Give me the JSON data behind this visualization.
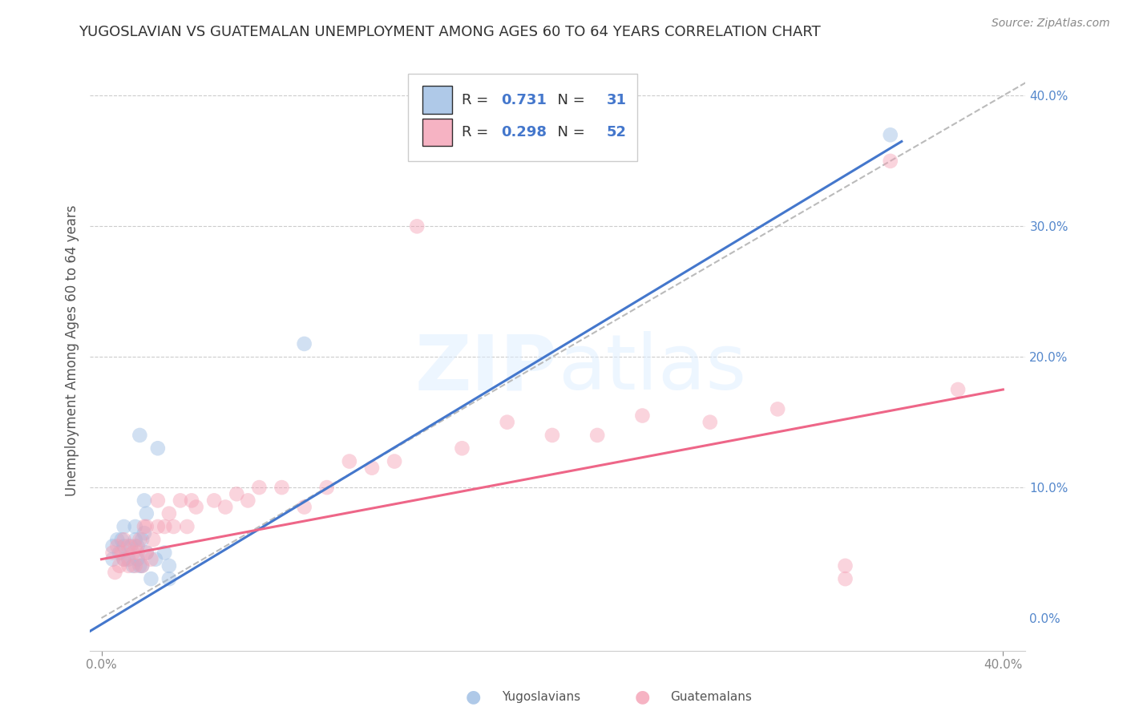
{
  "title": "YUGOSLAVIAN VS GUATEMALAN UNEMPLOYMENT AMONG AGES 60 TO 64 YEARS CORRELATION CHART",
  "source": "Source: ZipAtlas.com",
  "ylabel": "Unemployment Among Ages 60 to 64 years",
  "xlim": [
    -0.005,
    0.41
  ],
  "ylim": [
    -0.025,
    0.435
  ],
  "yticks_right": [
    0.0,
    0.1,
    0.2,
    0.3,
    0.4
  ],
  "ytick_labels_right": [
    "0.0%",
    "10.0%",
    "20.0%",
    "30.0%",
    "40.0%"
  ],
  "xticks": [
    0.0,
    0.4
  ],
  "xtick_labels": [
    "0.0%",
    "40.0%"
  ],
  "legend_label1": "Yugoslavians",
  "legend_label2": "Guatemalans",
  "blue_color": "#9BBCE3",
  "pink_color": "#F4A0B5",
  "blue_line_color": "#4477CC",
  "pink_line_color": "#EE6688",
  "dark_text": "#333333",
  "blue_text": "#4477CC",
  "blue_scatter_x": [
    0.005,
    0.005,
    0.007,
    0.008,
    0.009,
    0.01,
    0.01,
    0.01,
    0.012,
    0.013,
    0.014,
    0.015,
    0.015,
    0.016,
    0.016,
    0.017,
    0.017,
    0.018,
    0.018,
    0.019,
    0.019,
    0.02,
    0.02,
    0.022,
    0.024,
    0.025,
    0.028,
    0.03,
    0.03,
    0.09,
    0.35
  ],
  "blue_scatter_y": [
    0.045,
    0.055,
    0.06,
    0.05,
    0.06,
    0.045,
    0.055,
    0.07,
    0.045,
    0.055,
    0.04,
    0.06,
    0.07,
    0.045,
    0.055,
    0.04,
    0.14,
    0.04,
    0.06,
    0.065,
    0.09,
    0.05,
    0.08,
    0.03,
    0.045,
    0.13,
    0.05,
    0.03,
    0.04,
    0.21,
    0.37
  ],
  "pink_scatter_x": [
    0.005,
    0.006,
    0.007,
    0.008,
    0.009,
    0.01,
    0.01,
    0.012,
    0.012,
    0.014,
    0.015,
    0.015,
    0.016,
    0.017,
    0.018,
    0.019,
    0.02,
    0.02,
    0.022,
    0.023,
    0.025,
    0.025,
    0.028,
    0.03,
    0.032,
    0.035,
    0.038,
    0.04,
    0.042,
    0.05,
    0.055,
    0.06,
    0.065,
    0.07,
    0.08,
    0.09,
    0.1,
    0.11,
    0.12,
    0.13,
    0.14,
    0.16,
    0.18,
    0.2,
    0.22,
    0.24,
    0.27,
    0.3,
    0.33,
    0.33,
    0.35,
    0.38
  ],
  "pink_scatter_y": [
    0.05,
    0.035,
    0.055,
    0.04,
    0.05,
    0.045,
    0.06,
    0.04,
    0.055,
    0.05,
    0.04,
    0.055,
    0.05,
    0.06,
    0.04,
    0.07,
    0.05,
    0.07,
    0.045,
    0.06,
    0.07,
    0.09,
    0.07,
    0.08,
    0.07,
    0.09,
    0.07,
    0.09,
    0.085,
    0.09,
    0.085,
    0.095,
    0.09,
    0.1,
    0.1,
    0.085,
    0.1,
    0.12,
    0.115,
    0.12,
    0.3,
    0.13,
    0.15,
    0.14,
    0.14,
    0.155,
    0.15,
    0.16,
    0.03,
    0.04,
    0.35,
    0.175
  ],
  "blue_line_x": [
    -0.005,
    0.355
  ],
  "blue_line_y": [
    -0.01,
    0.365
  ],
  "pink_line_x": [
    0.0,
    0.4
  ],
  "pink_line_y": [
    0.045,
    0.175
  ],
  "diag_line_x": [
    0.0,
    0.41
  ],
  "diag_line_y": [
    0.0,
    0.41
  ],
  "background_color": "#ffffff",
  "grid_color": "#cccccc",
  "marker_size": 180,
  "marker_alpha": 0.45,
  "right_axis_color": "#5588CC"
}
